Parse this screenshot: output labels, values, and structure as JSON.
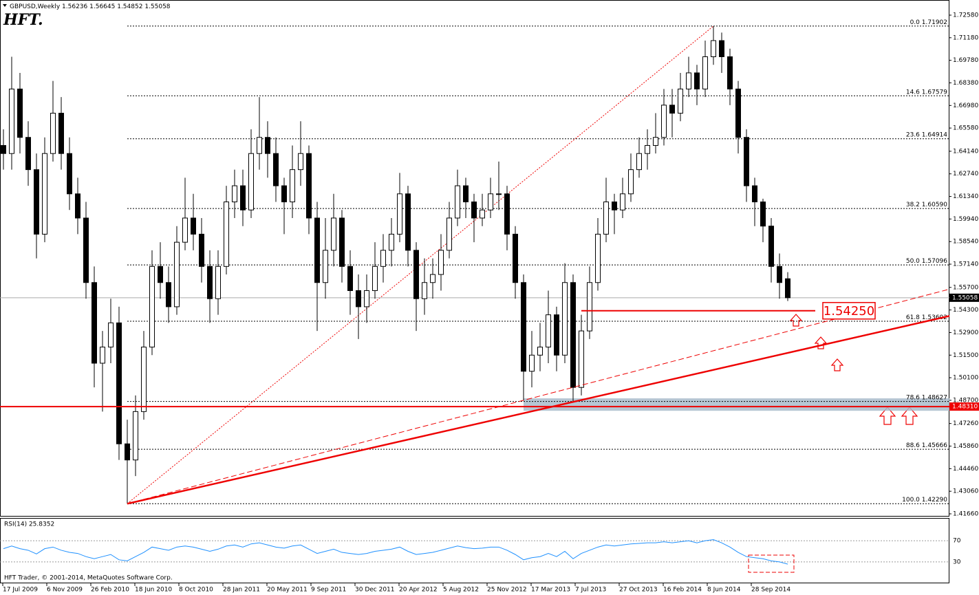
{
  "chart_data": {
    "type": "candlestick",
    "symbol": "GBPUSD,Weekly",
    "logo": "HFT.",
    "copyright": "HFT Trader, © 2001-2014, MetaQuotes Software Corp.",
    "x_labels": [
      "17 Jul 2009",
      "6 Nov 2009",
      "26 Feb 2010",
      "18 Jun 2010",
      "8 Oct 2010",
      "28 Jan 2011",
      "20 May 2011",
      "9 Sep 2011",
      "30 Dec 2011",
      "20 Apr 2012",
      "5 Aug 2012",
      "25 Nov 2012",
      "17 Mar 2013",
      "7 Jul 2013",
      "27 Oct 2013",
      "16 Feb 2014",
      "8 Jun 2014",
      "28 Sep 2014"
    ],
    "open": [
      1.645,
      1.64,
      1.68,
      1.65,
      1.63,
      1.59,
      1.64,
      1.665,
      1.64,
      1.615,
      1.6,
      1.56,
      1.51,
      1.52,
      1.535,
      1.46,
      1.45,
      1.48,
      1.52,
      1.57,
      1.56,
      1.545,
      1.585,
      1.6,
      1.59,
      1.57,
      1.55,
      1.57,
      1.61,
      1.62,
      1.605,
      1.64,
      1.65,
      1.64,
      1.62,
      1.61,
      1.63,
      1.64,
      1.6,
      1.56,
      1.58,
      1.6,
      1.57,
      1.555,
      1.545,
      1.555,
      1.57,
      1.58,
      1.59,
      1.615,
      1.58,
      1.55,
      1.56,
      1.565,
      1.58,
      1.6,
      1.62,
      1.61,
      1.6,
      1.605,
      1.615,
      1.615,
      1.59,
      1.56,
      1.505,
      1.515,
      1.52,
      1.54,
      1.515,
      1.56,
      1.495,
      1.53,
      1.56,
      1.59,
      1.61,
      1.605,
      1.615,
      1.63,
      1.64,
      1.645,
      1.65,
      1.67,
      1.665,
      1.68,
      1.69,
      1.68,
      1.7,
      1.71,
      1.7,
      1.68,
      1.65,
      1.62,
      1.61,
      1.595,
      1.57,
      1.56236
    ],
    "high": [
      1.655,
      1.7,
      1.69,
      1.66,
      1.64,
      1.65,
      1.685,
      1.675,
      1.65,
      1.625,
      1.61,
      1.57,
      1.53,
      1.55,
      1.545,
      1.475,
      1.49,
      1.53,
      1.58,
      1.585,
      1.57,
      1.595,
      1.625,
      1.615,
      1.6,
      1.58,
      1.58,
      1.62,
      1.63,
      1.63,
      1.655,
      1.675,
      1.66,
      1.65,
      1.625,
      1.645,
      1.66,
      1.645,
      1.61,
      1.6,
      1.615,
      1.605,
      1.58,
      1.565,
      1.565,
      1.585,
      1.59,
      1.6,
      1.628,
      1.62,
      1.585,
      1.575,
      1.575,
      1.59,
      1.61,
      1.63,
      1.625,
      1.615,
      1.615,
      1.625,
      1.635,
      1.62,
      1.595,
      1.565,
      1.53,
      1.535,
      1.555,
      1.545,
      1.572,
      1.565,
      1.54,
      1.57,
      1.6,
      1.625,
      1.615,
      1.625,
      1.64,
      1.65,
      1.655,
      1.665,
      1.68,
      1.68,
      1.69,
      1.7,
      1.695,
      1.71,
      1.719,
      1.715,
      1.705,
      1.685,
      1.655,
      1.625,
      1.612,
      1.6,
      1.578,
      1.56645
    ],
    "low": [
      1.63,
      1.63,
      1.64,
      1.62,
      1.575,
      1.585,
      1.635,
      1.63,
      1.605,
      1.59,
      1.55,
      1.495,
      1.48,
      1.51,
      1.45,
      1.4229,
      1.44,
      1.475,
      1.515,
      1.55,
      1.535,
      1.54,
      1.58,
      1.58,
      1.56,
      1.535,
      1.54,
      1.565,
      1.6,
      1.595,
      1.6,
      1.63,
      1.625,
      1.61,
      1.59,
      1.6,
      1.62,
      1.59,
      1.53,
      1.55,
      1.57,
      1.56,
      1.54,
      1.525,
      1.535,
      1.55,
      1.56,
      1.57,
      1.585,
      1.57,
      1.53,
      1.54,
      1.55,
      1.555,
      1.575,
      1.595,
      1.6,
      1.585,
      1.595,
      1.6,
      1.605,
      1.58,
      1.55,
      1.487,
      1.495,
      1.505,
      1.51,
      1.505,
      1.51,
      1.486,
      1.49,
      1.525,
      1.555,
      1.585,
      1.59,
      1.6,
      1.61,
      1.625,
      1.63,
      1.64,
      1.645,
      1.65,
      1.66,
      1.675,
      1.67,
      1.675,
      1.695,
      1.69,
      1.67,
      1.64,
      1.61,
      1.595,
      1.585,
      1.56,
      1.55,
      1.54852
    ],
    "close": [
      1.64,
      1.68,
      1.65,
      1.63,
      1.59,
      1.64,
      1.665,
      1.64,
      1.615,
      1.6,
      1.56,
      1.51,
      1.52,
      1.535,
      1.46,
      1.45,
      1.48,
      1.52,
      1.57,
      1.56,
      1.545,
      1.585,
      1.6,
      1.59,
      1.57,
      1.55,
      1.57,
      1.61,
      1.62,
      1.605,
      1.64,
      1.65,
      1.64,
      1.62,
      1.61,
      1.63,
      1.64,
      1.6,
      1.56,
      1.58,
      1.6,
      1.57,
      1.555,
      1.545,
      1.555,
      1.57,
      1.58,
      1.59,
      1.615,
      1.58,
      1.55,
      1.56,
      1.565,
      1.58,
      1.6,
      1.62,
      1.61,
      1.6,
      1.605,
      1.615,
      1.615,
      1.59,
      1.56,
      1.505,
      1.515,
      1.52,
      1.54,
      1.515,
      1.56,
      1.495,
      1.53,
      1.56,
      1.59,
      1.61,
      1.605,
      1.615,
      1.63,
      1.64,
      1.645,
      1.65,
      1.67,
      1.665,
      1.68,
      1.69,
      1.68,
      1.7,
      1.71,
      1.7,
      1.68,
      1.65,
      1.62,
      1.61,
      1.595,
      1.57,
      1.56,
      1.55058
    ],
    "ylim": [
      1.4166,
      1.7258
    ],
    "yticks": [
      {
        "value": 1.7258,
        "label": "1.72580"
      },
      {
        "value": 1.7118,
        "label": "1.71180"
      },
      {
        "value": 1.6978,
        "label": "1.69780"
      },
      {
        "value": 1.6838,
        "label": "1.68380"
      },
      {
        "value": 1.6698,
        "label": "1.66980"
      },
      {
        "value": 1.6558,
        "label": "1.65580"
      },
      {
        "value": 1.6414,
        "label": "1.64140"
      },
      {
        "value": 1.6274,
        "label": "1.62740"
      },
      {
        "value": 1.6134,
        "label": "1.61340"
      },
      {
        "value": 1.5994,
        "label": "1.59940"
      },
      {
        "value": 1.5854,
        "label": "1.58540"
      },
      {
        "value": 1.5714,
        "label": "1.57140"
      },
      {
        "value": 1.557,
        "label": "1.55700"
      },
      {
        "value": 1.543,
        "label": "1.54300"
      },
      {
        "value": 1.529,
        "label": "1.52900"
      },
      {
        "value": 1.515,
        "label": "1.51500"
      },
      {
        "value": 1.501,
        "label": "1.50100"
      },
      {
        "value": 1.487,
        "label": "1.48700"
      },
      {
        "value": 1.4726,
        "label": "1.47260"
      },
      {
        "value": 1.4586,
        "label": "1.45860"
      },
      {
        "value": 1.4446,
        "label": "1.44460"
      },
      {
        "value": 1.4306,
        "label": "1.43060"
      },
      {
        "value": 1.4166,
        "label": "1.41660"
      }
    ],
    "fib": [
      {
        "level": "0.0",
        "price": 1.71902
      },
      {
        "level": "14.6",
        "price": 1.67579
      },
      {
        "level": "23.6",
        "price": 1.64914
      },
      {
        "level": "38.2",
        "price": {
          "value": 1.6059,
          "label": "1.60590"
        }
      },
      {
        "level": "50.0",
        "price": 1.57096
      },
      {
        "level": "61.8",
        "price": 1.53602
      },
      {
        "level": "78.6",
        "price": 1.48627
      },
      {
        "level": "88.6",
        "price": 1.45666
      },
      {
        "level": "100.0",
        "price": {
          "value": 1.4229,
          "label": "1.42290"
        }
      }
    ],
    "support": {
      "value": 1.4831,
      "label": "1.48310"
    },
    "support_zone": [
      1.4805,
      1.4882
    ],
    "target": {
      "value": 1.5425,
      "label": "1.54250"
    },
    "rsi": {
      "title": "RSI(14) 25.8352",
      "ylim": [
        0,
        100
      ],
      "yticks": [
        70,
        30
      ],
      "values": [
        55,
        60,
        55,
        52,
        45,
        55,
        58,
        52,
        48,
        46,
        40,
        36,
        40,
        44,
        34,
        32,
        40,
        48,
        58,
        55,
        52,
        58,
        60,
        58,
        54,
        50,
        54,
        60,
        62,
        58,
        64,
        66,
        62,
        58,
        56,
        60,
        62,
        54,
        46,
        50,
        54,
        48,
        46,
        44,
        46,
        50,
        52,
        54,
        58,
        50,
        44,
        46,
        48,
        52,
        56,
        60,
        57,
        55,
        56,
        58,
        58,
        52,
        44,
        34,
        38,
        40,
        46,
        40,
        50,
        36,
        46,
        52,
        58,
        62,
        60,
        62,
        64,
        65,
        66,
        66,
        68,
        66,
        68,
        70,
        66,
        70,
        72,
        66,
        58,
        48,
        40,
        38,
        36,
        32,
        30,
        25.8352
      ]
    }
  }
}
